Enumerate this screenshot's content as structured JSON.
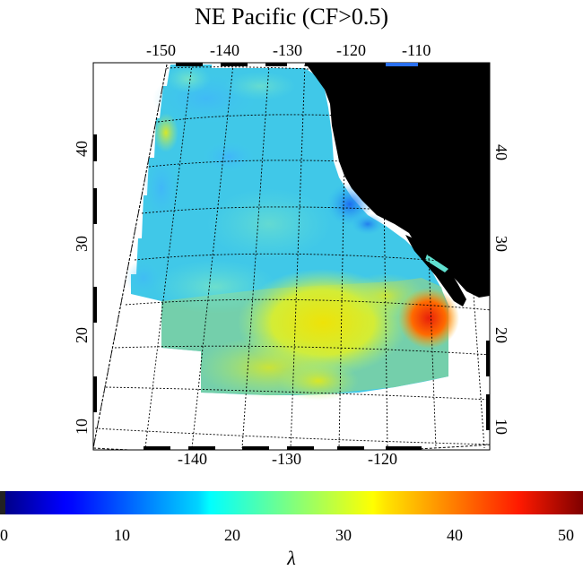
{
  "title": "NE Pacific (CF>0.5)",
  "top_lon_labels": [
    "-150",
    "-140",
    "-130",
    "-120",
    "-110"
  ],
  "bottom_lon_labels": [
    "-140",
    "-130",
    "-120"
  ],
  "left_lat_labels": [
    "40",
    "30",
    "20",
    "10"
  ],
  "right_lat_labels": [
    "40",
    "30",
    "20",
    "10"
  ],
  "colorbar": {
    "label": "λ",
    "ticks": [
      "0",
      "10",
      "20",
      "30",
      "40",
      "50"
    ],
    "min": 0,
    "max": 50,
    "colormap": "jet"
  },
  "colors": {
    "land": "#000000",
    "no_data": "#ffffff",
    "grid": "#000000"
  },
  "map_region": {
    "lon_range": [
      -150,
      -110
    ],
    "lat_range": [
      10,
      45
    ],
    "description_values": {
      "coastal_min": 12,
      "southeast_max": 43,
      "typical_open_ocean": 20
    }
  }
}
